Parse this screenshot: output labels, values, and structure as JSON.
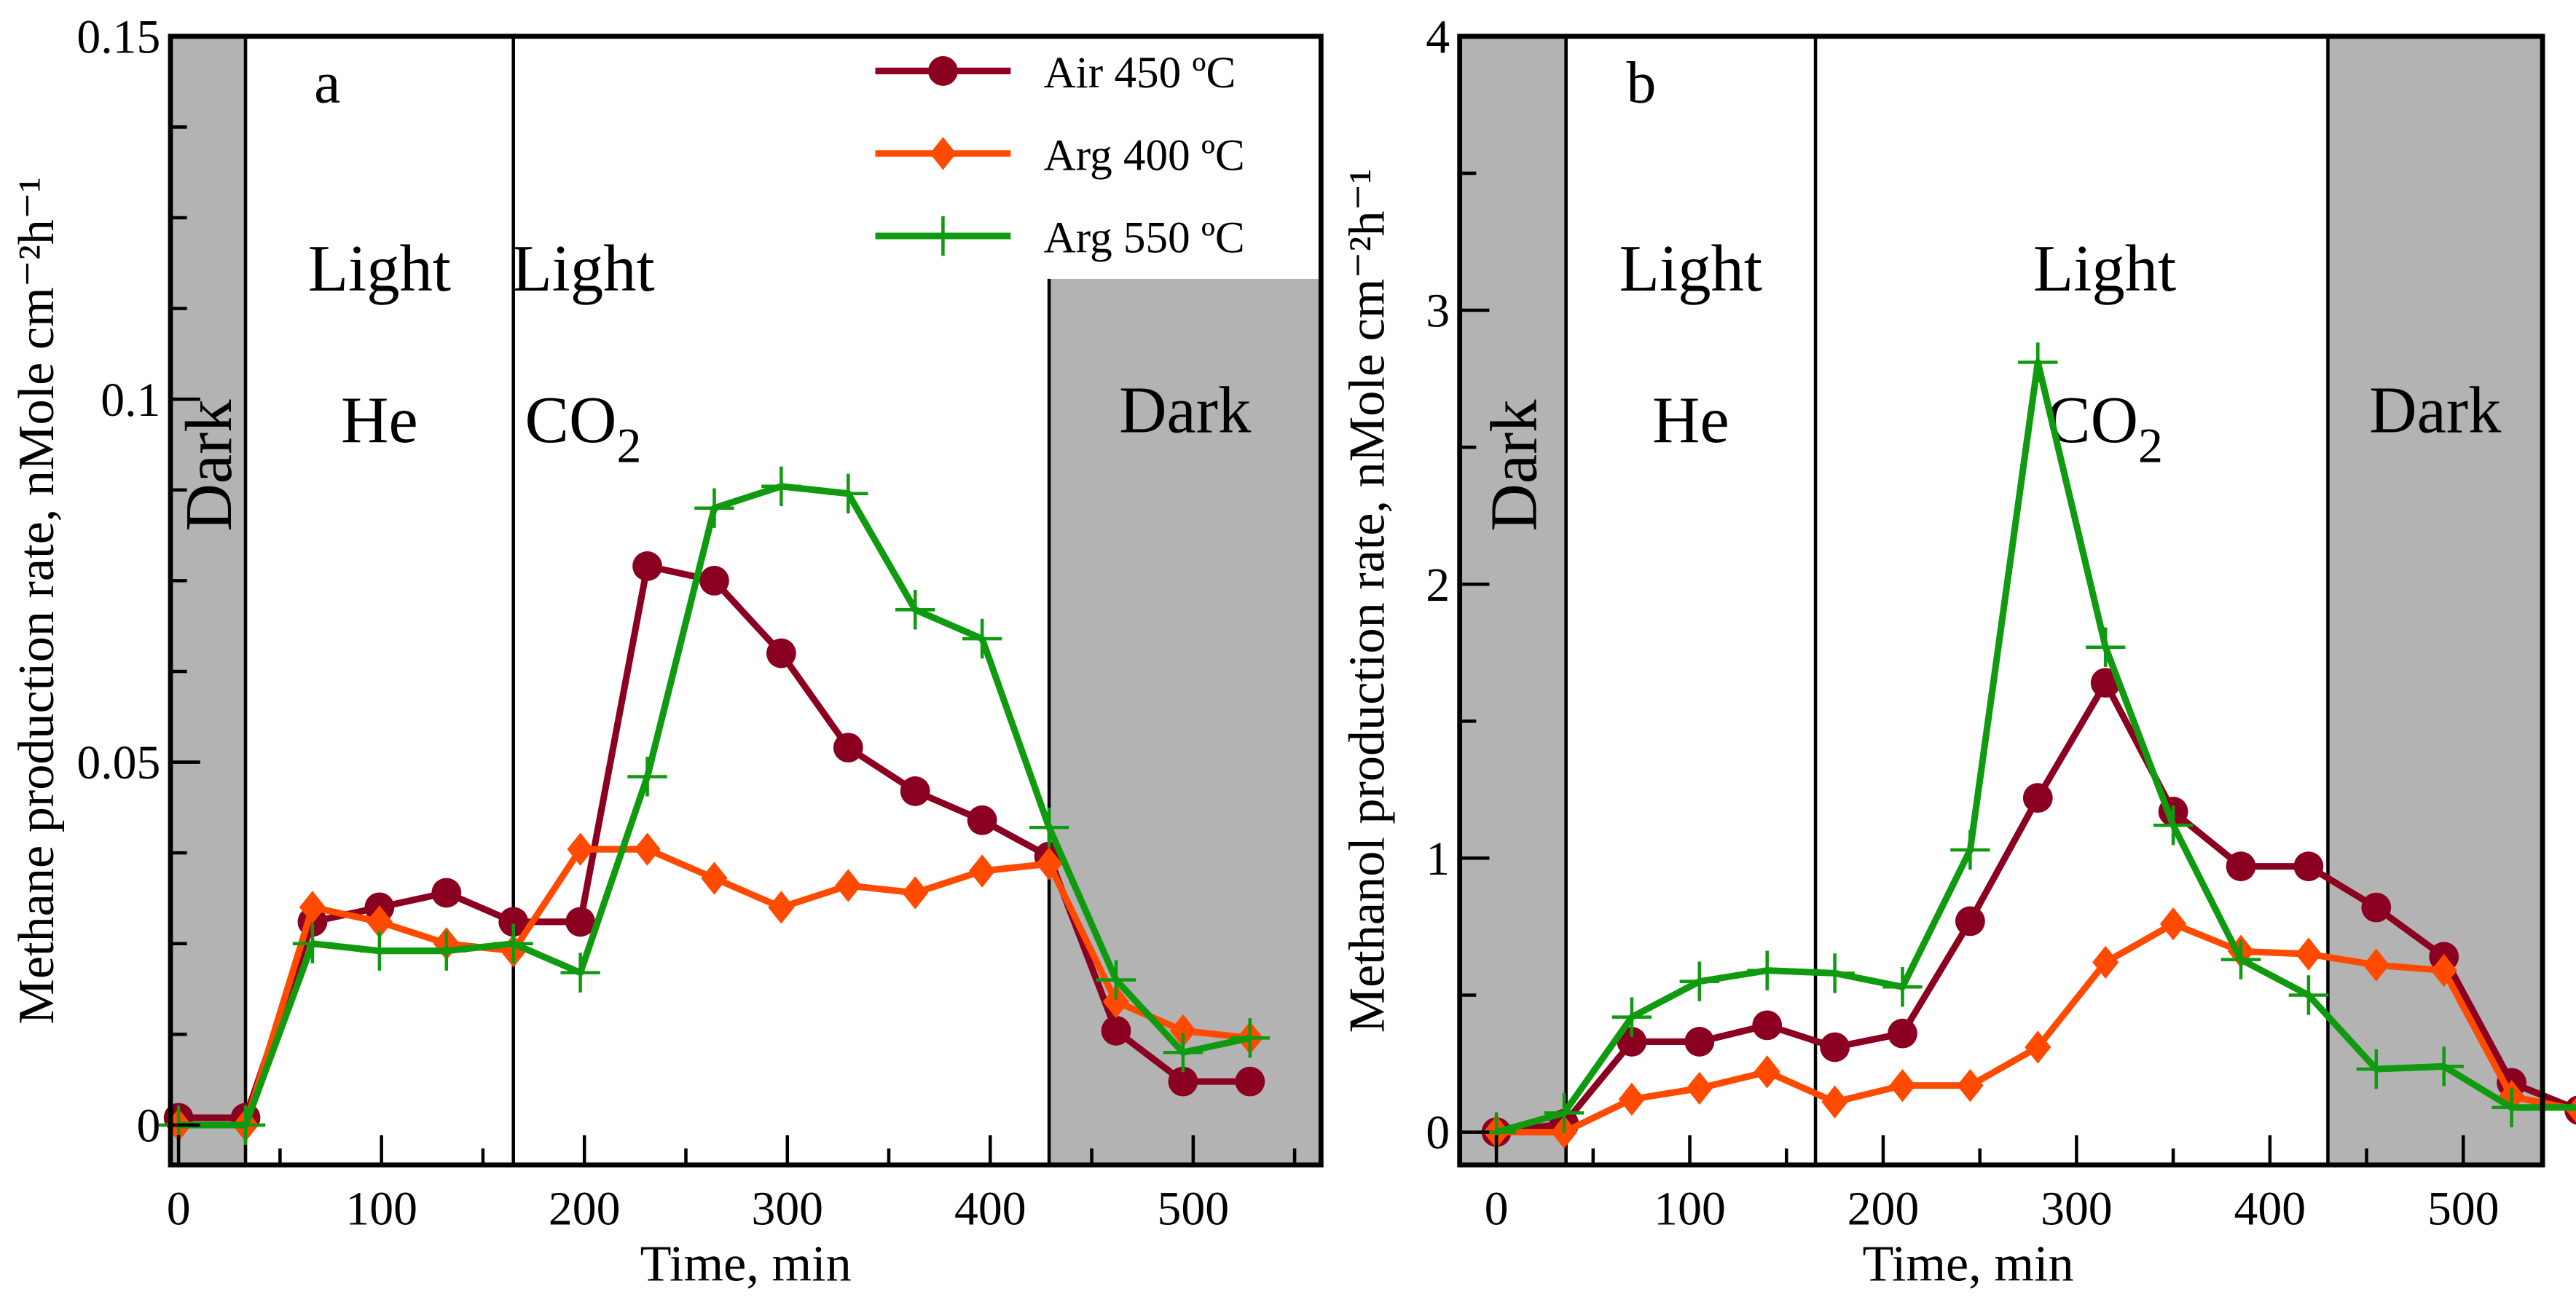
{
  "legend": [
    {
      "name": "Air 450 ºC",
      "color": "#8b0020",
      "marker": "circle"
    },
    {
      "name": "Arg 400 ºC",
      "color": "#ff4a00",
      "marker": "diamond"
    },
    {
      "name": "Arg 550 ºC",
      "color": "#0f9a0f",
      "marker": "plus"
    }
  ],
  "colors": {
    "dark_region": "#b3b3b3"
  },
  "chart_data": [
    {
      "type": "line",
      "panel_label": "a",
      "xlabel": "Time, min",
      "ylabel": "Methane production rate, nMole cm⁻²h⁻¹",
      "xlim": [
        -4,
        563
      ],
      "ylim": [
        -0.0055,
        0.15
      ],
      "xticks": [
        0,
        100,
        200,
        300,
        400,
        500
      ],
      "yticks": [
        0,
        0.05,
        0.1,
        0.15
      ],
      "ytick_labels": [
        "0",
        "0.05",
        "0.1",
        "0.15"
      ],
      "regions": [
        {
          "label": "Dark",
          "from": -4,
          "to": 33,
          "dark": true,
          "rotated": true
        },
        {
          "label": "Light",
          "label2": "He",
          "from": 33,
          "to": 165,
          "dark": false
        },
        {
          "label": "Light",
          "label2": "CO",
          "sub": "2",
          "from": 165,
          "to": 429,
          "dark": false
        },
        {
          "label": "Dark",
          "from": 429,
          "to": 563,
          "dark": true
        }
      ],
      "x": [
        0,
        33,
        66,
        99,
        132,
        165,
        198,
        231,
        264,
        297,
        330,
        363,
        396,
        429,
        462,
        495,
        528
      ],
      "series": [
        {
          "name": "Air 450 ºC",
          "values": [
            0.001,
            0.001,
            0.028,
            0.03,
            0.032,
            0.028,
            0.028,
            0.077,
            0.075,
            0.065,
            0.052,
            0.046,
            0.042,
            0.037,
            0.013,
            0.006,
            0.006
          ]
        },
        {
          "name": "Arg 400 ºC",
          "values": [
            0.0,
            0.0,
            0.03,
            0.028,
            0.025,
            0.024,
            0.038,
            0.038,
            0.034,
            0.03,
            0.033,
            0.032,
            0.035,
            0.036,
            0.017,
            0.013,
            0.012
          ]
        },
        {
          "name": "Arg 550 ºC",
          "values": [
            0.0,
            0.0,
            0.025,
            0.024,
            0.024,
            0.025,
            0.021,
            0.048,
            0.085,
            0.088,
            0.087,
            0.071,
            0.067,
            0.041,
            0.02,
            0.01,
            0.012
          ]
        }
      ]
    },
    {
      "type": "line",
      "panel_label": "b",
      "xlabel": "Time, min",
      "ylabel": "Methanol production rate, nMole cm⁻²h⁻¹",
      "xlim": [
        -19,
        541
      ],
      "ylim": [
        -0.12,
        4
      ],
      "xticks": [
        0,
        100,
        200,
        300,
        400,
        500
      ],
      "yticks": [
        0,
        1,
        2,
        3,
        4
      ],
      "ytick_labels": [
        "0",
        "1",
        "2",
        "3",
        "4"
      ],
      "regions": [
        {
          "label": "Dark",
          "from": -19,
          "to": 36,
          "dark": true,
          "rotated": true
        },
        {
          "label": "Light",
          "label2": "He",
          "from": 36,
          "to": 165,
          "dark": false
        },
        {
          "label": "Light",
          "label2": "CO",
          "sub": "2",
          "from": 165,
          "to": 430,
          "dark": false
        },
        {
          "label": "Dark",
          "from": 430,
          "to": 541,
          "dark": true
        }
      ],
      "x": [
        0,
        35,
        70,
        105,
        140,
        175,
        210,
        245,
        280,
        315,
        350,
        385,
        420,
        455,
        490,
        525,
        560
      ],
      "series": [
        {
          "name": "Air 450 ºC",
          "values": [
            0.0,
            0.03,
            0.33,
            0.33,
            0.39,
            0.31,
            0.36,
            0.77,
            1.22,
            1.64,
            1.17,
            0.97,
            0.97,
            0.82,
            0.64,
            0.18,
            0.08
          ]
        },
        {
          "name": "Arg 400 ºC",
          "values": [
            0.0,
            0.0,
            0.12,
            0.16,
            0.22,
            0.11,
            0.17,
            0.17,
            0.31,
            0.62,
            0.76,
            0.66,
            0.65,
            0.61,
            0.59,
            0.13,
            0.08
          ]
        },
        {
          "name": "Arg 550 ºC",
          "values": [
            0.0,
            0.07,
            0.42,
            0.55,
            0.59,
            0.58,
            0.53,
            1.03,
            2.81,
            1.77,
            1.12,
            0.63,
            0.5,
            0.23,
            0.24,
            0.09,
            0.09
          ]
        }
      ]
    }
  ]
}
